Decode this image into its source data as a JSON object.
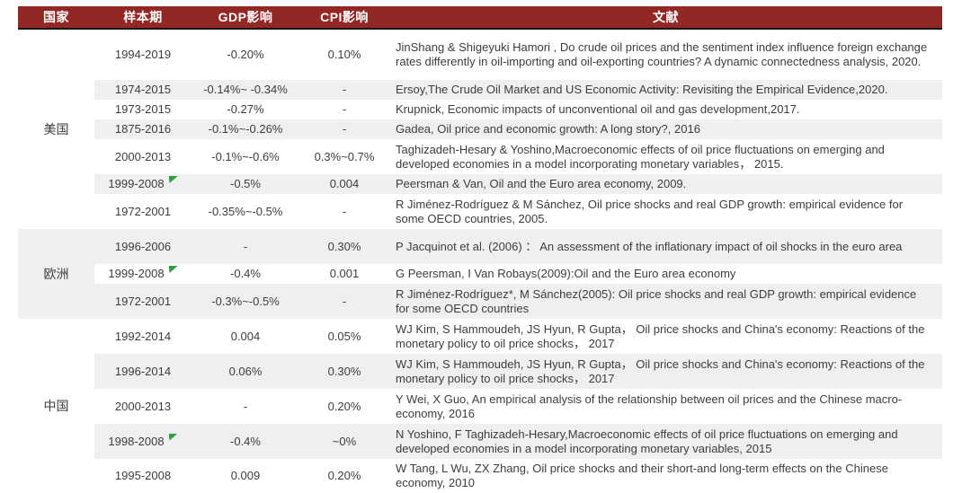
{
  "colors": {
    "header_bg": "#932724",
    "header_text": "#ffffff",
    "row_stripe": "#efefef",
    "body_text": "#3d3d3d",
    "flag_green": "#2e9e3e",
    "header_rule": "#161616"
  },
  "table": {
    "headers": [
      "国家",
      "样本期",
      "GDP影响",
      "CPI影响",
      "文献"
    ],
    "groups": [
      {
        "country": "美国",
        "country_shaded": false,
        "rows": [
          {
            "period": "1994-2019",
            "marker": false,
            "gdp": "-0.20%",
            "cpi": "0.10%",
            "lit": "JinShang & Shigeyuki Hamori , Do crude oil prices and the sentiment index influence foreign exchange rates differently in oil-importing and oil-exporting countries? A dynamic connectedness analysis, 2020.",
            "shaded": false
          },
          {
            "period": "1974-2015",
            "marker": false,
            "gdp": "-0.14%~ -0.34%",
            "cpi": "-",
            "lit": "Ersoy,The Crude Oil Market and US Economic Activity: Revisiting the Empirical Evidence,2020.",
            "shaded": true
          },
          {
            "period": "1973-2015",
            "marker": false,
            "gdp": "-0.27%",
            "cpi": "-",
            "lit": "Krupnick, Economic impacts of unconventional oil and gas development,2017.",
            "shaded": false
          },
          {
            "period": "1875-2016",
            "marker": false,
            "gdp": "-0.1%~-0.26%",
            "cpi": "-",
            "lit": "Gadea, Oil price and economic growth: A long story?, 2016",
            "shaded": true
          },
          {
            "period": "2000-2013",
            "marker": false,
            "gdp": "-0.1%~-0.6%",
            "cpi": "0.3%~0.7%",
            "lit": "Taghizadeh-Hesary & Yoshino,Macroeconomic effects of oil price fluctuations on emerging and developed economies in a model incorporating monetary variables， 2015.",
            "shaded": false
          },
          {
            "period": "1999-2008",
            "marker": true,
            "gdp": "-0.5%",
            "cpi": "0.004",
            "lit": "Peersman & Van, Oil and the Euro area economy, 2009.",
            "shaded": true
          },
          {
            "period": "1972-2001",
            "marker": false,
            "gdp": "-0.35%~-0.5%",
            "cpi": "-",
            "lit": "R Jiménez-Rodríguez & M Sánchez, Oil price shocks and real GDP growth: empirical evidence for some OECD countries, 2005.",
            "shaded": false
          }
        ]
      },
      {
        "country": "欧洲",
        "country_shaded": true,
        "rows": [
          {
            "period": "1996-2006",
            "marker": false,
            "gdp": "-",
            "cpi": "0.30%",
            "lit": "P Jacquinot et al.  (2006) ： An assessment of the inflationary impact of oil shocks in the euro area",
            "shaded": true
          },
          {
            "period": "1999-2008",
            "marker": true,
            "gdp": "-0.4%",
            "cpi": "0.001",
            "lit": "G Peersman, I Van Robays(2009):Oil and the Euro area economy",
            "shaded": false
          },
          {
            "period": "1972-2001",
            "marker": false,
            "gdp": "-0.3%~-0.5%",
            "cpi": "-",
            "lit": "R Jiménez-Rodríguez*, M Sánchez(2005): Oil price shocks and real GDP growth: empirical evidence for some OECD countries",
            "shaded": true
          }
        ]
      },
      {
        "country": "中国",
        "country_shaded": false,
        "rows": [
          {
            "period": "1992-2014",
            "marker": false,
            "gdp": "0.004",
            "cpi": "0.05%",
            "lit": "WJ Kim, S Hammoudeh, JS Hyun, R Gupta， Oil price shocks and China's economy: Reactions of the monetary policy to oil price shocks， 2017",
            "shaded": false
          },
          {
            "period": "1996-2014",
            "marker": false,
            "gdp": "0.06%",
            "cpi": "0.30%",
            "lit": "WJ Kim, S Hammoudeh, JS Hyun, R Gupta， Oil price shocks and China's economy: Reactions of the monetary policy to oil price shocks， 2017",
            "shaded": true
          },
          {
            "period": "2000-2013",
            "marker": false,
            "gdp": "-",
            "cpi": "0.20%",
            "lit": "Y Wei, X Guo, An empirical analysis of the relationship between oil prices and the Chinese macro-economy, 2016",
            "shaded": false
          },
          {
            "period": "1998-2008",
            "marker": true,
            "gdp": "-0.4%",
            "cpi": "~0%",
            "lit": "N Yoshino, F Taghizadeh-Hesary,Macroeconomic effects of oil price fluctuations on emerging and developed economies in a model incorporating monetary variables, 2015",
            "shaded": true
          },
          {
            "period": "1995-2008",
            "marker": false,
            "gdp": "0.009",
            "cpi": "0.20%",
            "lit": "W Tang, L Wu, ZX Zhang, Oil price shocks and their short-and long-term effects on the Chinese economy, 2010",
            "shaded": false
          }
        ]
      }
    ]
  }
}
